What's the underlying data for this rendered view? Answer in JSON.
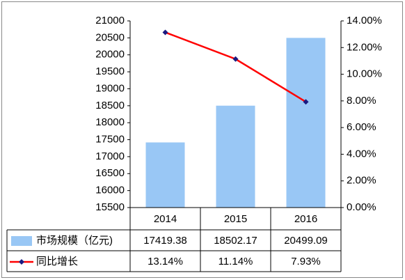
{
  "chart_data": {
    "type": "combo",
    "categories": [
      "2014",
      "2015",
      "2016"
    ],
    "series": [
      {
        "name": "市场规模（亿元)",
        "type": "bar",
        "color": "#99c7f5",
        "values": [
          17419.38,
          18502.17,
          20499.09
        ]
      },
      {
        "name": "同比增长",
        "type": "line",
        "axis": "y2",
        "color": "#ff0000",
        "marker_color": "#1a1a80",
        "values": [
          13.14,
          11.14,
          7.93
        ],
        "value_labels": [
          "13.14%",
          "11.14%",
          "7.93%"
        ]
      }
    ],
    "ylim": [
      15500,
      21000
    ],
    "yticks": [
      15500,
      16000,
      16500,
      17000,
      17500,
      18000,
      18500,
      19000,
      19500,
      20000,
      20500,
      21000
    ],
    "y2lim": [
      0,
      14
    ],
    "y2ticks": [
      {
        "value": 0,
        "label": "0.00%"
      },
      {
        "value": 2,
        "label": "2.00%"
      },
      {
        "value": 4,
        "label": "4.00%"
      },
      {
        "value": 6,
        "label": "6.00%"
      },
      {
        "value": 8,
        "label": "8.00%"
      },
      {
        "value": 10,
        "label": "10.00%"
      },
      {
        "value": 12,
        "label": "12.00%"
      },
      {
        "value": 14,
        "label": "14.00%"
      }
    ],
    "grid": false
  }
}
